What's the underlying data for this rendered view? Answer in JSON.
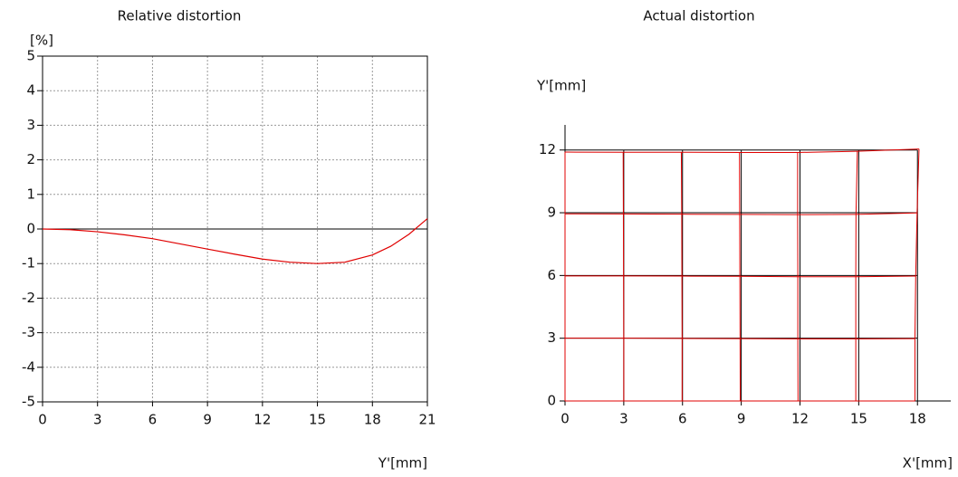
{
  "chart_data": [
    {
      "type": "line",
      "title": "Relative distortion",
      "y_unit": "[%]",
      "xlabel": "Y'[mm]",
      "x": [
        0,
        1.5,
        3,
        4.5,
        6,
        7.5,
        9,
        10.5,
        12,
        13.5,
        15,
        16.5,
        18,
        19,
        20,
        21
      ],
      "values": [
        0,
        -0.02,
        -0.08,
        -0.17,
        -0.28,
        -0.43,
        -0.58,
        -0.73,
        -0.87,
        -0.96,
        -1.0,
        -0.96,
        -0.75,
        -0.5,
        -0.15,
        0.3
      ],
      "color": "#e00000",
      "xlim": [
        0,
        21
      ],
      "xticks": [
        0,
        3,
        6,
        9,
        12,
        15,
        18,
        21
      ],
      "ylim": [
        -5,
        5
      ],
      "yticks": [
        -5,
        -4,
        -3,
        -2,
        -1,
        0,
        1,
        2,
        3,
        4,
        5
      ],
      "grid": true
    },
    {
      "type": "grid",
      "title": "Actual distortion",
      "ylabel": "Y'[mm]",
      "xlabel": "X'[mm]",
      "color": "#e00000",
      "grid_color": "#000000",
      "xlim": [
        0,
        19.7
      ],
      "xticks": [
        0,
        3,
        6,
        9,
        12,
        15,
        18
      ],
      "ylim": [
        0,
        13.2
      ],
      "yticks": [
        0,
        3,
        6,
        9,
        12
      ],
      "rows": [
        {
          "x": [
            0,
            3.0,
            5.98,
            8.95,
            11.9,
            14.85,
            17.87
          ],
          "y": [
            0,
            0,
            0,
            0,
            0,
            0,
            0
          ]
        },
        {
          "x": [
            0,
            3.0,
            5.98,
            8.94,
            11.89,
            14.85,
            17.87
          ],
          "y": [
            3.0,
            3.0,
            2.99,
            2.98,
            2.97,
            2.97,
            2.98
          ]
        },
        {
          "x": [
            0,
            2.99,
            5.97,
            8.93,
            11.89,
            14.85,
            17.91
          ],
          "y": [
            5.98,
            5.98,
            5.97,
            5.96,
            5.94,
            5.94,
            5.97
          ]
        },
        {
          "x": [
            0,
            2.98,
            5.96,
            8.92,
            11.88,
            14.86,
            17.98
          ],
          "y": [
            8.95,
            8.94,
            8.93,
            8.92,
            8.91,
            8.92,
            8.99
          ]
        },
        {
          "x": [
            0,
            2.97,
            5.94,
            8.91,
            11.88,
            14.93,
            18.08
          ],
          "y": [
            11.9,
            11.89,
            11.89,
            11.88,
            11.88,
            11.94,
            12.05
          ]
        }
      ]
    }
  ]
}
